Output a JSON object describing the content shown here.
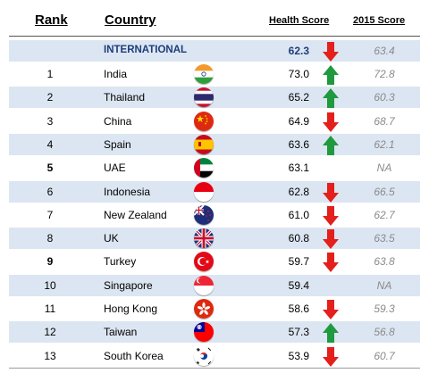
{
  "headers": {
    "rank": "Rank",
    "country": "Country",
    "health": "Health Score",
    "prev": "2015 Score"
  },
  "international": {
    "label": "INTERNATIONAL",
    "score": "62.3",
    "trend": "down",
    "prev": "63.4"
  },
  "rows": [
    {
      "rank": "1",
      "country": "India",
      "flag": "india-flag-icon",
      "score": "73.0",
      "trend": "up",
      "prev": "72.8"
    },
    {
      "rank": "2",
      "country": "Thailand",
      "flag": "thailand-flag-icon",
      "score": "65.2",
      "trend": "up",
      "prev": "60.3"
    },
    {
      "rank": "3",
      "country": "China",
      "flag": "china-flag-icon",
      "score": "64.9",
      "trend": "down",
      "prev": "68.7"
    },
    {
      "rank": "4",
      "country": "Spain",
      "flag": "spain-flag-icon",
      "score": "63.6",
      "trend": "up",
      "prev": "62.1"
    },
    {
      "rank": "5",
      "country": "UAE",
      "flag": "uae-flag-icon",
      "score": "63.1",
      "trend": "none",
      "prev": "NA"
    },
    {
      "rank": "6",
      "country": "Indonesia",
      "flag": "indonesia-flag-icon",
      "score": "62.8",
      "trend": "down",
      "prev": "66.5"
    },
    {
      "rank": "7",
      "country": "New Zealand",
      "flag": "new-zealand-flag-icon",
      "score": "61.0",
      "trend": "down",
      "prev": "62.7"
    },
    {
      "rank": "8",
      "country": "UK",
      "flag": "uk-flag-icon",
      "score": "60.8",
      "trend": "down",
      "prev": "63.5"
    },
    {
      "rank": "9",
      "country": "Turkey",
      "flag": "turkey-flag-icon",
      "score": "59.7",
      "trend": "down",
      "prev": "63.8"
    },
    {
      "rank": "10",
      "country": "Singapore",
      "flag": "singapore-flag-icon",
      "score": "59.4",
      "trend": "none",
      "prev": "NA"
    },
    {
      "rank": "11",
      "country": "Hong Kong",
      "flag": "hong-kong-flag-icon",
      "score": "58.6",
      "trend": "down",
      "prev": "59.3"
    },
    {
      "rank": "12",
      "country": "Taiwan",
      "flag": "taiwan-flag-icon",
      "score": "57.3",
      "trend": "up",
      "prev": "56.8"
    },
    {
      "rank": "13",
      "country": "South Korea",
      "flag": "south-korea-flag-icon",
      "score": "53.9",
      "trend": "down",
      "prev": "60.7"
    }
  ],
  "colors": {
    "band": "#dce6f2",
    "intl_text": "#1f3d7a",
    "up": "#1f9a3e",
    "down": "#e3201b",
    "prev_text": "#8a8a8a"
  }
}
